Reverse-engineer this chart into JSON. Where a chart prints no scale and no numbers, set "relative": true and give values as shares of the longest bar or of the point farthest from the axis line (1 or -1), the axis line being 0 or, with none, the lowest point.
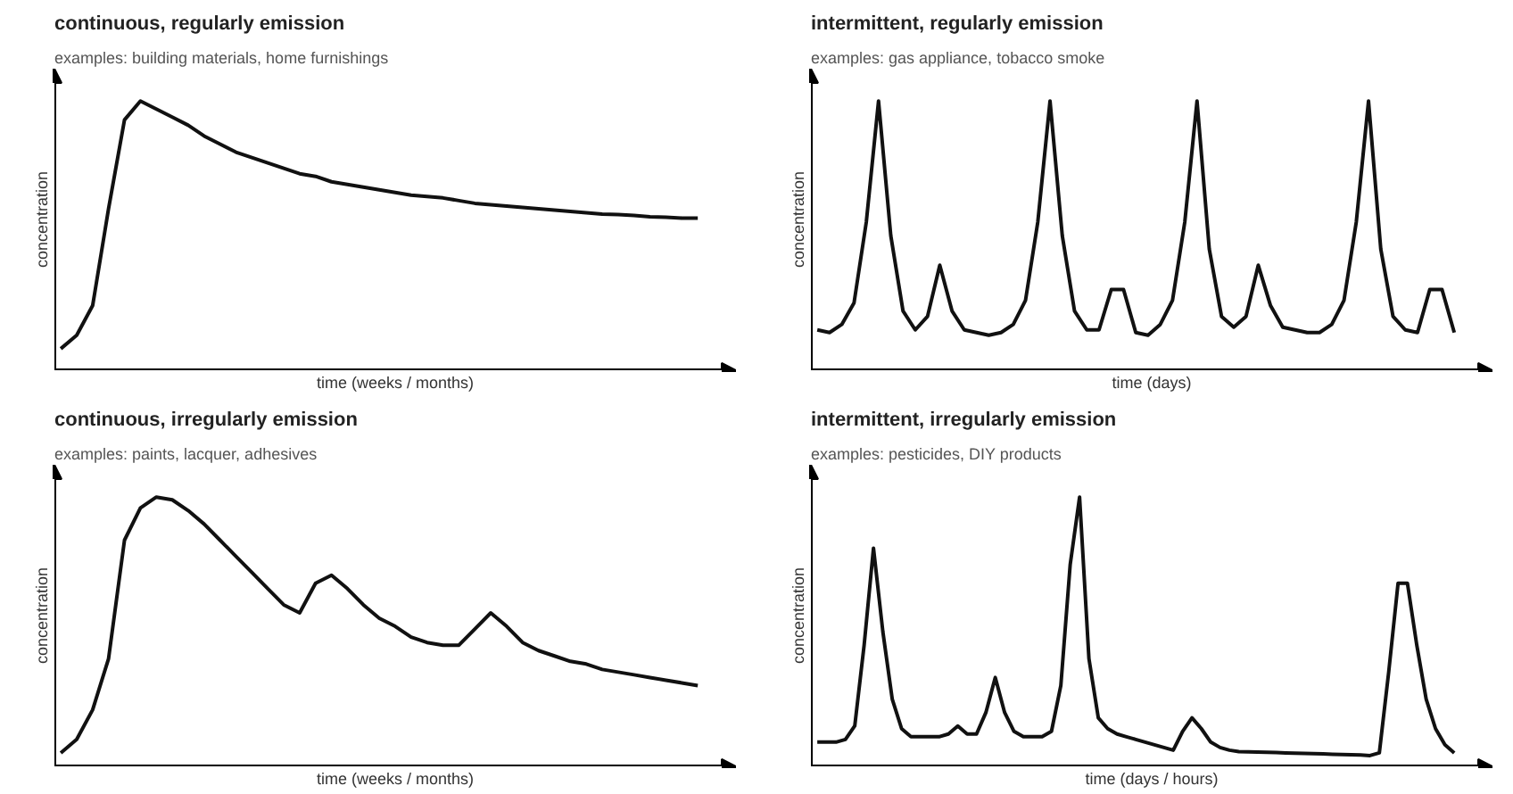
{
  "chart_data": [
    {
      "type": "line",
      "title": "continuous, regularly emission",
      "subtitle": "examples: building materials, home furnishings",
      "xlabel": "time (weeks / months)",
      "ylabel": "concentration",
      "relative": true,
      "categories": [
        null,
        null,
        null,
        null,
        null,
        null,
        null,
        null,
        null,
        null,
        null,
        null,
        null,
        null,
        null,
        null,
        null,
        null,
        null,
        null,
        null,
        null,
        null,
        null,
        null,
        null,
        null,
        null,
        null,
        null,
        null,
        null,
        null,
        null,
        null,
        null,
        null,
        null,
        null,
        null,
        null
      ],
      "series": [
        {
          "color": "#111111",
          "values": [
            0.08,
            0.13,
            0.24,
            0.6,
            0.93,
            1.0,
            0.97,
            0.94,
            0.91,
            0.87,
            0.84,
            0.81,
            0.79,
            0.77,
            0.75,
            0.73,
            0.72,
            0.7,
            0.69,
            0.68,
            0.67,
            0.66,
            0.65,
            0.645,
            0.64,
            0.63,
            0.62,
            0.615,
            0.61,
            0.605,
            0.6,
            0.595,
            0.59,
            0.585,
            0.58,
            0.578,
            0.575,
            0.57,
            0.568,
            0.565,
            0.565
          ]
        }
      ]
    },
    {
      "type": "line",
      "title": "intermittent, regularly emission",
      "subtitle": "examples: gas appliance, tobacco smoke",
      "xlabel": "time (days)",
      "ylabel": "concentration",
      "relative": true,
      "categories": [
        null,
        null,
        null,
        null,
        null,
        null,
        null,
        null,
        null,
        null,
        null,
        null,
        null,
        null,
        null,
        null,
        null,
        null,
        null,
        null,
        null,
        null,
        null,
        null,
        null,
        null,
        null,
        null,
        null,
        null,
        null,
        null,
        null,
        null,
        null,
        null,
        null,
        null,
        null,
        null,
        null,
        null,
        null,
        null,
        null,
        null,
        null,
        null,
        null,
        null,
        null,
        null,
        null
      ],
      "series": [
        {
          "color": "#111111",
          "values": [
            0.15,
            0.14,
            0.17,
            0.25,
            0.55,
            1.0,
            0.5,
            0.22,
            0.15,
            0.2,
            0.39,
            0.22,
            0.15,
            0.14,
            0.13,
            0.14,
            0.17,
            0.26,
            0.55,
            1.0,
            0.5,
            0.22,
            0.15,
            0.15,
            0.3,
            0.3,
            0.14,
            0.13,
            0.17,
            0.26,
            0.55,
            1.0,
            0.45,
            0.2,
            0.16,
            0.2,
            0.39,
            0.24,
            0.16,
            0.15,
            0.14,
            0.14,
            0.17,
            0.26,
            0.55,
            1.0,
            0.45,
            0.2,
            0.15,
            0.14,
            0.3,
            0.3,
            0.14
          ]
        }
      ]
    },
    {
      "type": "line",
      "title": "continuous, irregularly emission",
      "subtitle": "examples: paints, lacquer, adhesives",
      "xlabel": "time (weeks / months)",
      "ylabel": "concentration",
      "relative": true,
      "categories": [
        null,
        null,
        null,
        null,
        null,
        null,
        null,
        null,
        null,
        null,
        null,
        null,
        null,
        null,
        null,
        null,
        null,
        null,
        null,
        null,
        null,
        null,
        null,
        null,
        null,
        null,
        null,
        null,
        null,
        null,
        null,
        null,
        null,
        null,
        null,
        null,
        null,
        null,
        null,
        null,
        null
      ],
      "series": [
        {
          "color": "#111111",
          "values": [
            0.05,
            0.1,
            0.21,
            0.4,
            0.84,
            0.96,
            1.0,
            0.99,
            0.95,
            0.9,
            0.84,
            0.78,
            0.72,
            0.66,
            0.6,
            0.57,
            0.68,
            0.71,
            0.66,
            0.6,
            0.55,
            0.52,
            0.48,
            0.46,
            0.45,
            0.45,
            0.51,
            0.57,
            0.52,
            0.46,
            0.43,
            0.41,
            0.39,
            0.38,
            0.36,
            0.35,
            0.34,
            0.33,
            0.32,
            0.31,
            0.3
          ]
        }
      ]
    },
    {
      "type": "line",
      "title": "intermittent, irregularly emission",
      "subtitle": "examples: pesticides, DIY products",
      "xlabel": "time (days / hours)",
      "ylabel": "concentration",
      "relative": true,
      "categories": [
        null,
        null,
        null,
        null,
        null,
        null,
        null,
        null,
        null,
        null,
        null,
        null,
        null,
        null,
        null,
        null,
        null,
        null,
        null,
        null,
        null,
        null,
        null,
        null,
        null,
        null,
        null,
        null,
        null,
        null,
        null,
        null,
        null,
        null,
        null,
        null,
        null,
        null,
        null,
        null,
        null,
        null,
        null,
        null,
        null,
        null,
        null,
        null,
        null,
        null,
        null,
        null,
        null,
        null,
        null,
        null,
        null,
        null,
        null,
        null,
        null,
        null,
        null,
        null,
        null,
        null,
        null,
        null,
        null
      ],
      "series": [
        {
          "color": "#111111",
          "values": [
            0.09,
            0.09,
            0.09,
            0.1,
            0.15,
            0.45,
            0.81,
            0.5,
            0.25,
            0.14,
            0.11,
            0.11,
            0.11,
            0.11,
            0.12,
            0.15,
            0.12,
            0.12,
            0.2,
            0.33,
            0.2,
            0.13,
            0.11,
            0.11,
            0.11,
            0.13,
            0.3,
            0.75,
            1.0,
            0.4,
            0.18,
            0.14,
            0.12,
            0.11,
            0.1,
            0.09,
            0.08,
            0.07,
            0.06,
            0.13,
            0.18,
            0.14,
            0.09,
            0.07,
            0.06,
            0.055,
            0.054,
            0.053,
            0.052,
            0.051,
            0.05,
            0.049,
            0.048,
            0.047,
            0.046,
            0.045,
            0.044,
            0.043,
            0.042,
            0.04,
            0.05,
            0.35,
            0.68,
            0.68,
            0.45,
            0.25,
            0.14,
            0.08,
            0.05
          ]
        }
      ]
    }
  ]
}
